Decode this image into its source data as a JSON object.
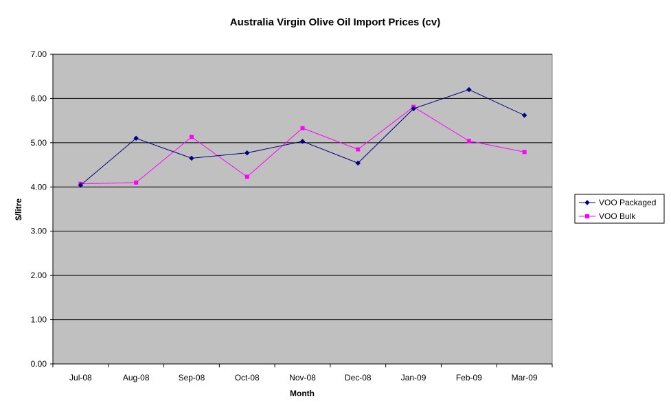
{
  "chart_data": {
    "type": "line",
    "title": "Australia Virgin Olive Oil Import Prices (cv)",
    "xlabel": "Month",
    "ylabel": "$/litre",
    "categories": [
      "Jul-08",
      "Aug-08",
      "Sep-08",
      "Oct-08",
      "Nov-08",
      "Dec-08",
      "Jan-09",
      "Feb-09",
      "Mar-09"
    ],
    "ylim": [
      0,
      7
    ],
    "yticks": [
      "0.00",
      "1.00",
      "2.00",
      "3.00",
      "4.00",
      "5.00",
      "6.00",
      "7.00"
    ],
    "grid": true,
    "legend_position": "right",
    "plot_background": "#c0c0c0",
    "series": [
      {
        "name": "VOO Packaged",
        "color": "#000080",
        "marker": "diamond",
        "values": [
          4.04,
          5.1,
          4.65,
          4.77,
          5.03,
          4.54,
          5.77,
          6.2,
          5.62
        ]
      },
      {
        "name": "VOO Bulk",
        "color": "#ff00ff",
        "marker": "square",
        "values": [
          4.07,
          4.1,
          5.13,
          4.23,
          5.33,
          4.85,
          5.81,
          5.04,
          4.79
        ]
      }
    ]
  }
}
